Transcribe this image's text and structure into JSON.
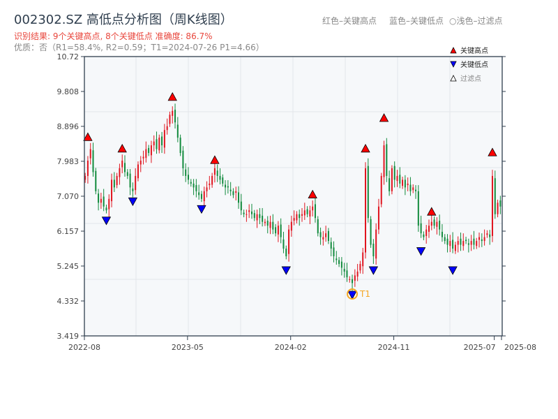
{
  "title": "002302.SZ 高低点分析图（周K线图）",
  "result_line": "识别结果: 9个关键高点, 8个关键低点  准确度: 86.7%",
  "quality_line": "优质：否（R1=58.4%, R2=0.59；T1=2024-07-26 P1=4.66）",
  "top_legend": [
    "红色–关键高点",
    "蓝色–关键低点",
    "○浅色–过滤点"
  ],
  "colors": {
    "up": "#e0141e",
    "down": "#118a3c",
    "high_marker": "#ff0000",
    "low_marker": "#0000ff",
    "t1": "#f5a623"
  },
  "chart_data": {
    "type": "candlestick",
    "title": "002302.SZ 高低点分析图（周K线图）",
    "ylim": [
      3.419,
      10.72
    ],
    "yticks": [
      "3.419",
      "4.332",
      "5.245",
      "6.157",
      "7.070",
      "7.983",
      "8.896",
      "9.808",
      "10.72"
    ],
    "xticks": [
      {
        "label": "2022-08",
        "i": 0
      },
      {
        "label": "2023-05",
        "i": 39
      },
      {
        "label": "2024-02",
        "i": 78
      },
      {
        "label": "2024-11",
        "i": 117
      },
      {
        "label": "2025-07",
        "i": 155
      },
      {
        "label": "2025-08",
        "i": 158
      }
    ],
    "legend": [
      {
        "label": "关键高点",
        "marker": "triangle-up",
        "color": "#ff0000"
      },
      {
        "label": "关键低点",
        "marker": "triangle-down",
        "color": "#0000ff"
      },
      {
        "label": "过滤点",
        "marker": "triangle-up-hollow",
        "color": "#ffffff"
      }
    ],
    "legend_position": "top-right",
    "closes": [
      7.6,
      8.0,
      8.3,
      7.7,
      7.2,
      6.9,
      7.0,
      6.8,
      6.7,
      7.0,
      7.5,
      7.3,
      7.6,
      7.8,
      8.0,
      7.7,
      7.6,
      7.3,
      7.2,
      7.6,
      7.9,
      8.0,
      8.1,
      8.3,
      8.2,
      8.4,
      8.5,
      8.3,
      8.6,
      8.4,
      8.8,
      8.9,
      9.2,
      9.3,
      9.0,
      8.6,
      8.2,
      7.8,
      7.6,
      7.5,
      7.4,
      7.3,
      7.2,
      7.1,
      7.0,
      7.2,
      7.3,
      7.4,
      7.6,
      7.8,
      7.6,
      7.5,
      7.4,
      7.3,
      7.3,
      7.2,
      7.1,
      7.2,
      6.9,
      6.7,
      6.6,
      6.6,
      6.7,
      6.6,
      6.5,
      6.6,
      6.5,
      6.4,
      6.4,
      6.3,
      6.4,
      6.2,
      6.1,
      6.3,
      6.0,
      5.7,
      5.5,
      6.2,
      6.4,
      6.5,
      6.6,
      6.5,
      6.6,
      6.7,
      6.6,
      6.7,
      6.8,
      6.5,
      6.1,
      6.0,
      6.0,
      6.1,
      5.9,
      5.7,
      5.5,
      5.4,
      5.3,
      5.2,
      5.1,
      4.95,
      4.9,
      4.8,
      5.0,
      5.1,
      5.3,
      5.6,
      7.8,
      6.5,
      5.8,
      5.5,
      6.2,
      6.8,
      7.6,
      8.4,
      7.6,
      7.2,
      7.8,
      7.5,
      7.6,
      7.4,
      7.5,
      7.3,
      7.4,
      7.2,
      7.3,
      7.2,
      6.3,
      6.1,
      6.0,
      6.2,
      6.3,
      6.4,
      6.3,
      6.4,
      6.2,
      6.0,
      5.9,
      5.8,
      5.9,
      5.7,
      5.8,
      5.9,
      5.8,
      5.9,
      5.9,
      5.8,
      5.9,
      5.8,
      5.9,
      6.0,
      5.9,
      6.0,
      6.1,
      6.0,
      7.6,
      6.6,
      6.9,
      6.8
    ],
    "key_highs": [
      {
        "i": 1,
        "price": 8.45
      },
      {
        "i": 14,
        "price": 8.15
      },
      {
        "i": 33,
        "price": 9.5
      },
      {
        "i": 49,
        "price": 7.85
      },
      {
        "i": 86,
        "price": 6.95
      },
      {
        "i": 106,
        "price": 8.15
      },
      {
        "i": 113,
        "price": 8.95
      },
      {
        "i": 131,
        "price": 6.5
      },
      {
        "i": 154,
        "price": 8.05
      }
    ],
    "key_lows": [
      {
        "i": 8,
        "price": 6.6
      },
      {
        "i": 18,
        "price": 7.1
      },
      {
        "i": 44,
        "price": 6.9
      },
      {
        "i": 76,
        "price": 5.3
      },
      {
        "i": 101,
        "price": 4.66
      },
      {
        "i": 109,
        "price": 5.3
      },
      {
        "i": 127,
        "price": 5.8
      },
      {
        "i": 139,
        "price": 5.3
      }
    ],
    "annotation": {
      "label": "T1",
      "i": 101,
      "price": 4.66
    }
  }
}
